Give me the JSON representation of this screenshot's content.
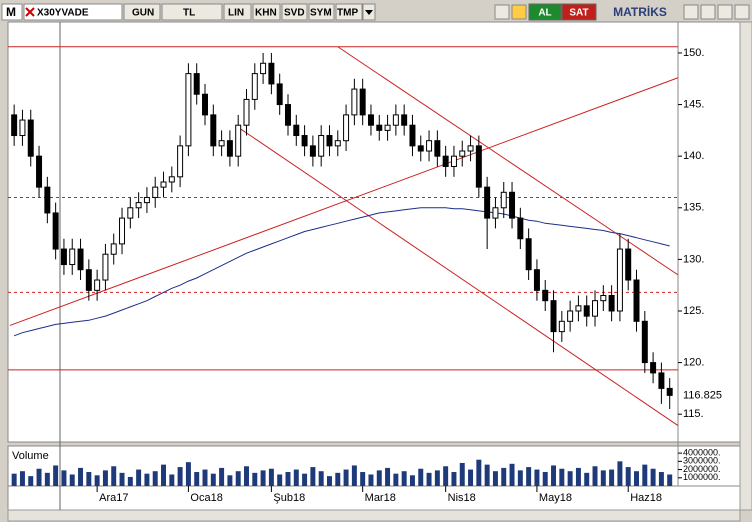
{
  "toolbar": {
    "logo": "M",
    "symbol": "X30YVADE",
    "buttons": [
      "GUN",
      "TL",
      "LIN",
      "KHN",
      "SVD",
      "SYM",
      "TMP"
    ],
    "buy": "AL",
    "sell": "SAT",
    "brand": "MATRİKS"
  },
  "chart_data": {
    "type": "candlestick",
    "xlim": [
      -0.5,
      80
    ],
    "xticks": [
      {
        "value": 10,
        "label": "Ara17"
      },
      {
        "value": 21,
        "label": "Oca18"
      },
      {
        "value": 31,
        "label": "Şub18"
      },
      {
        "value": 42,
        "label": "Mar18"
      },
      {
        "value": 52,
        "label": "Nis18"
      },
      {
        "value": 63,
        "label": "May18"
      },
      {
        "value": 74,
        "label": "Haz18"
      }
    ],
    "ylim": [
      112.5,
      153
    ],
    "yticks": [
      {
        "value": 115,
        "label": "115."
      },
      {
        "value": 120,
        "label": "120."
      },
      {
        "value": 125,
        "label": "125."
      },
      {
        "value": 130,
        "label": "130."
      },
      {
        "value": 135,
        "label": "135."
      },
      {
        "value": 140,
        "label": "140."
      },
      {
        "value": 145,
        "label": "145."
      },
      {
        "value": 150,
        "label": "150."
      }
    ],
    "last_price": 116.825,
    "up_color": "#ffffff",
    "down_color": "#000000",
    "open": [
      144,
      142,
      143.5,
      140,
      137,
      134.5,
      131,
      129.5,
      131,
      129,
      127,
      128,
      130.5,
      131.5,
      134,
      135,
      135.5,
      136,
      137,
      137.5,
      138,
      141,
      148,
      146,
      144,
      141,
      141.5,
      140,
      143,
      145.5,
      148,
      149,
      147,
      145,
      143,
      142,
      141,
      140,
      142,
      141,
      141.5,
      144,
      146.5,
      144,
      143,
      142.5,
      143,
      144,
      143,
      141,
      140.5,
      141.5,
      140,
      139,
      140,
      140.5,
      141,
      137,
      134,
      135,
      136.5,
      134,
      132,
      129,
      127,
      126,
      123,
      124,
      125,
      125.5,
      124.5,
      126,
      126.5,
      125,
      131,
      128,
      124,
      120,
      119,
      117.5
    ],
    "high": [
      145,
      144.5,
      144.5,
      141,
      138,
      135.5,
      132,
      132,
      132,
      130,
      129,
      131.5,
      132.5,
      135,
      136,
      136.5,
      137,
      138,
      138.5,
      139,
      142,
      149,
      149,
      147,
      145,
      142.5,
      142.5,
      144,
      146.5,
      149,
      150,
      150,
      148,
      146,
      144,
      143,
      142,
      143,
      143,
      142.5,
      145,
      147.5,
      147.5,
      145,
      144,
      144,
      145,
      145,
      144,
      142,
      142.5,
      142.5,
      141,
      141,
      141.5,
      142,
      142,
      138,
      136,
      137.5,
      137.5,
      135,
      133,
      130,
      128,
      127,
      125,
      126,
      126.5,
      126.5,
      127,
      127.5,
      127.5,
      132.5,
      132,
      129,
      125,
      121,
      120,
      118.5
    ],
    "low": [
      141,
      141,
      139,
      136,
      133.5,
      130,
      128.5,
      128.5,
      128,
      126,
      126,
      127,
      129.5,
      130.5,
      133,
      134,
      134.5,
      135,
      136,
      136.5,
      137,
      140,
      145,
      143,
      140,
      140,
      139,
      139,
      142,
      144.5,
      147,
      146,
      144,
      142,
      141,
      140,
      139,
      139,
      140,
      140,
      140.5,
      143,
      143,
      142,
      141.5,
      141.5,
      142,
      142,
      140,
      139.5,
      139.5,
      139,
      138,
      138,
      139,
      139.5,
      136,
      131,
      133,
      134,
      133,
      131,
      128,
      126,
      125,
      121,
      122,
      123,
      124,
      123.5,
      123.5,
      125,
      124,
      124,
      127,
      123,
      119,
      118,
      116,
      115.5
    ],
    "close": [
      142,
      143.5,
      140,
      137,
      134.5,
      131,
      129.5,
      131,
      129,
      127,
      128,
      130.5,
      131.5,
      134,
      135,
      135.5,
      136,
      137,
      137.5,
      138,
      141,
      148,
      146,
      144,
      141,
      141.5,
      140,
      143,
      145.5,
      148,
      149,
      147,
      145,
      143,
      142,
      141,
      140,
      142,
      141,
      141.5,
      144,
      146.5,
      144,
      143,
      142.5,
      143,
      144,
      143,
      141,
      140.5,
      141.5,
      140,
      139,
      140,
      140.5,
      141,
      137,
      134,
      135,
      136.5,
      134,
      132,
      129,
      127,
      126,
      123,
      124,
      125,
      125.5,
      124.5,
      126,
      126.5,
      125,
      131,
      128,
      124,
      120,
      119,
      117.5,
      116.825
    ],
    "ma": {
      "color": "#1a2f8a",
      "values": [
        122.6,
        122.9,
        123.1,
        123.3,
        123.5,
        123.7,
        123.8,
        123.9,
        124.0,
        124.1,
        124.3,
        124.5,
        124.8,
        125.1,
        125.4,
        125.7,
        126.0,
        126.4,
        126.8,
        127.2,
        127.5,
        127.9,
        128.2,
        128.6,
        129.0,
        129.4,
        129.8,
        130.2,
        130.6,
        130.9,
        131.2,
        131.5,
        131.8,
        132.1,
        132.4,
        132.7,
        132.9,
        133.1,
        133.3,
        133.5,
        133.7,
        133.9,
        134.1,
        134.3,
        134.5,
        134.6,
        134.7,
        134.8,
        134.9,
        135.0,
        135.0,
        135.0,
        135.0,
        134.9,
        134.9,
        134.8,
        134.7,
        134.6,
        134.5,
        134.4,
        134.2,
        134.0,
        133.8,
        133.7,
        133.5,
        133.4,
        133.3,
        133.2,
        133.1,
        133.0,
        132.9,
        132.8,
        132.6,
        132.5,
        132.3,
        132.1,
        131.9,
        131.7,
        131.5,
        131.3
      ]
    },
    "hlines": [
      {
        "y": 150.6,
        "color": "#cc2222",
        "dashed": false
      },
      {
        "y": 136.0,
        "color": "#cc2222",
        "dashed": true
      },
      {
        "y": 126.8,
        "color": "#cc2222",
        "dashed": true
      },
      {
        "y": 119.3,
        "color": "#cc2222",
        "dashed": false
      }
    ],
    "trendlines": [
      {
        "x": [
          -0.5,
          80
        ],
        "y": [
          123.6,
          147.6
        ],
        "color": "#cc2222"
      },
      {
        "x": [
          27,
          80
        ],
        "y": [
          142.8,
          113.9
        ],
        "color": "#cc2222"
      },
      {
        "x": [
          39,
          80
        ],
        "y": [
          150.6,
          128.5
        ],
        "color": "#cc2222"
      }
    ],
    "volume": {
      "label": "Volume",
      "color": "#1f3a7a",
      "ylim": [
        0,
        4500000
      ],
      "yticks": [
        {
          "value": 1000000,
          "label": "1000000."
        },
        {
          "value": 2000000,
          "label": "2000000."
        },
        {
          "value": 3000000,
          "label": "3000000."
        },
        {
          "value": 4000000,
          "label": "4000000."
        }
      ],
      "values": [
        1500000,
        1800000,
        1200000,
        2100000,
        1600000,
        2500000,
        1900000,
        1400000,
        2200000,
        1700000,
        1300000,
        1900000,
        2400000,
        1600000,
        1100000,
        2000000,
        1500000,
        1800000,
        2600000,
        1400000,
        2300000,
        2900000,
        1700000,
        2000000,
        1500000,
        2200000,
        1300000,
        1800000,
        2400000,
        1600000,
        1900000,
        2100000,
        1400000,
        1700000,
        2000000,
        1500000,
        2300000,
        1800000,
        1200000,
        1600000,
        2000000,
        2500000,
        1700000,
        1400000,
        1900000,
        2200000,
        1500000,
        1800000,
        1300000,
        2100000,
        1600000,
        1900000,
        2400000,
        1700000,
        2800000,
        2000000,
        3200000,
        2600000,
        1800000,
        2200000,
        2700000,
        1900000,
        2300000,
        2000000,
        1700000,
        2500000,
        2100000,
        1800000,
        2200000,
        1600000,
        2400000,
        1900000,
        2000000,
        3000000,
        2300000,
        1800000,
        2600000,
        2100000,
        1700000,
        1400000
      ]
    }
  }
}
